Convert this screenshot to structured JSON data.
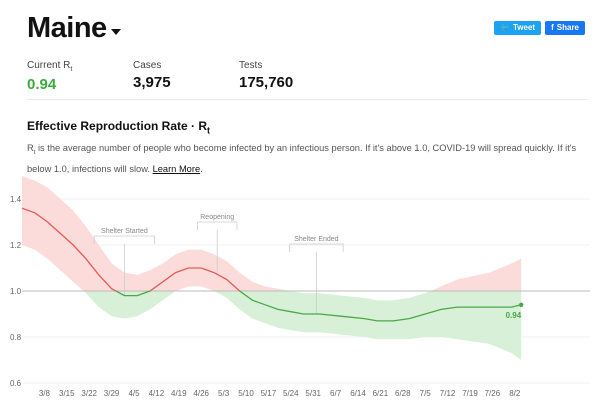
{
  "header": {
    "state": "Maine"
  },
  "share": {
    "tweet": "Tweet",
    "share": "Share"
  },
  "stats": [
    {
      "label": "Current R",
      "sub": "t",
      "value": "0.94",
      "green": true
    },
    {
      "label": "Cases",
      "sub": "",
      "value": "3,975",
      "green": false
    },
    {
      "label": "Tests",
      "sub": "",
      "value": "175,760",
      "green": false
    }
  ],
  "section": {
    "title": "Effective Reproduction Rate · R",
    "title_sub": "t",
    "desc_r": "R",
    "desc_sub": "t",
    "desc_text": " is the average number of people who become infected by an infectious person. If it's above 1.0, COVID-19 will spread quickly. If it's below 1.0, infections will slow. ",
    "learn_more": "Learn More",
    "desc_end": "."
  },
  "chart_data": {
    "type": "line",
    "title": "",
    "xlabel": "",
    "ylabel": "",
    "x_ticks": [
      "3/8",
      "3/15",
      "3/22",
      "3/29",
      "4/5",
      "4/12",
      "4/19",
      "4/26",
      "5/3",
      "5/10",
      "5/17",
      "5/24",
      "5/31",
      "6/7",
      "6/14",
      "6/21",
      "6/28",
      "7/5",
      "7/12",
      "7/19",
      "7/26",
      "8/2"
    ],
    "y_ticks": [
      "0.6",
      "0.8",
      "1.0",
      "1.2",
      "1.4"
    ],
    "ylim": [
      0.6,
      1.5
    ],
    "x_start": "3/1",
    "reference_line": 1.0,
    "colors": {
      "above": "#e35b55",
      "below": "#49a847",
      "band_above": "#fbdcda",
      "band_below": "#d9f0d8",
      "reference": "#bbbbbb"
    },
    "series": [
      {
        "name": "",
        "points": [
          [
            "3/1",
            1.36
          ],
          [
            "3/5",
            1.34
          ],
          [
            "3/9",
            1.3
          ],
          [
            "3/13",
            1.25
          ],
          [
            "3/17",
            1.2
          ],
          [
            "3/21",
            1.14
          ],
          [
            "3/25",
            1.07
          ],
          [
            "3/29",
            1.01
          ],
          [
            "4/2",
            0.98
          ],
          [
            "4/6",
            0.98
          ],
          [
            "4/10",
            1.0
          ],
          [
            "4/14",
            1.04
          ],
          [
            "4/18",
            1.08
          ],
          [
            "4/22",
            1.1
          ],
          [
            "4/26",
            1.1
          ],
          [
            "4/30",
            1.08
          ],
          [
            "5/4",
            1.05
          ],
          [
            "5/8",
            1.0
          ],
          [
            "5/12",
            0.96
          ],
          [
            "5/16",
            0.94
          ],
          [
            "5/20",
            0.92
          ],
          [
            "5/24",
            0.91
          ],
          [
            "5/28",
            0.9
          ],
          [
            "6/2",
            0.9
          ],
          [
            "6/9",
            0.89
          ],
          [
            "6/16",
            0.88
          ],
          [
            "6/20",
            0.87
          ],
          [
            "6/25",
            0.87
          ],
          [
            "6/30",
            0.88
          ],
          [
            "7/5",
            0.9
          ],
          [
            "7/10",
            0.92
          ],
          [
            "7/15",
            0.93
          ],
          [
            "7/25",
            0.93
          ],
          [
            "8/1",
            0.93
          ],
          [
            "8/4",
            0.94
          ]
        ],
        "lower": [
          1.2,
          1.18,
          1.14,
          1.09,
          1.04,
          0.99,
          0.93,
          0.89,
          0.88,
          0.89,
          0.92,
          0.96,
          1.0,
          1.02,
          1.02,
          1.0,
          0.97,
          0.92,
          0.88,
          0.86,
          0.84,
          0.83,
          0.82,
          0.82,
          0.81,
          0.8,
          0.79,
          0.79,
          0.79,
          0.8,
          0.8,
          0.79,
          0.77,
          0.73,
          0.7
        ],
        "upper": [
          1.5,
          1.48,
          1.45,
          1.4,
          1.35,
          1.28,
          1.2,
          1.12,
          1.08,
          1.07,
          1.09,
          1.12,
          1.16,
          1.18,
          1.18,
          1.16,
          1.13,
          1.08,
          1.04,
          1.02,
          1.01,
          1.0,
          0.99,
          0.99,
          0.98,
          0.97,
          0.96,
          0.96,
          0.97,
          0.99,
          1.02,
          1.05,
          1.08,
          1.12,
          1.14
        ]
      }
    ],
    "annotations": [
      {
        "label": "Shelter Started",
        "date": "4/2"
      },
      {
        "label": "Reopening",
        "date": "5/1"
      },
      {
        "label": "Shelter Ended",
        "date": "6/1"
      }
    ],
    "end_label": "0.94"
  }
}
